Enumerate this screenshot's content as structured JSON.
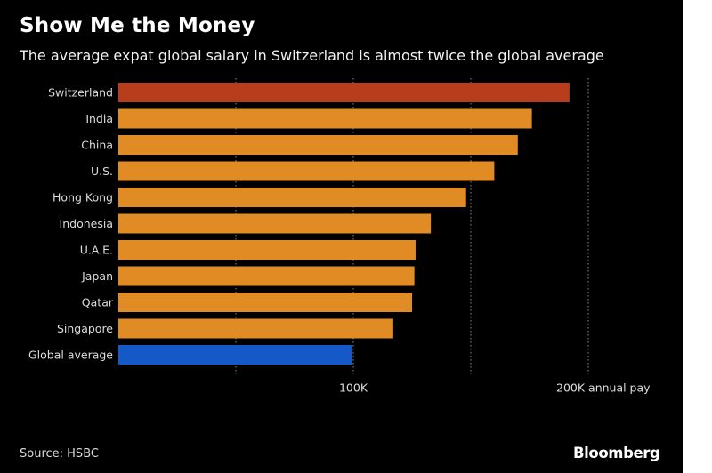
{
  "page": {
    "title": "Show Me the Money",
    "subtitle": "The average expat global salary in Switzerland is almost twice the global average",
    "source": "Source: HSBC",
    "brand": "Bloomberg"
  },
  "colors": {
    "highlight": "#b83d1c",
    "default": "#e08b24",
    "average": "#1559c9",
    "grid": "#8c8c8c",
    "background": "#000000"
  },
  "chart_data": {
    "type": "bar",
    "orientation": "horizontal",
    "title": "Show Me the Money",
    "subtitle": "The average expat global salary in Switzerland is almost twice the global average",
    "categories": [
      "Switzerland",
      "India",
      "China",
      "U.S.",
      "Hong Kong",
      "Indonesia",
      "U.A.E.",
      "Japan",
      "Qatar",
      "Singapore",
      "Global average"
    ],
    "values": [
      192000,
      176000,
      170000,
      160000,
      148000,
      133000,
      126500,
      126000,
      125000,
      117000,
      99500
    ],
    "xlim": [
      0,
      200000
    ],
    "ticks": [
      {
        "value": 50000,
        "label": ""
      },
      {
        "value": 100000,
        "label": "100K"
      },
      {
        "value": 150000,
        "label": ""
      },
      {
        "value": 200000,
        "label": "200K annual pay"
      }
    ],
    "xlabel": "",
    "ylabel": "",
    "grid": "vertical-dotted",
    "legend": "none",
    "source": "Source: HSBC"
  }
}
